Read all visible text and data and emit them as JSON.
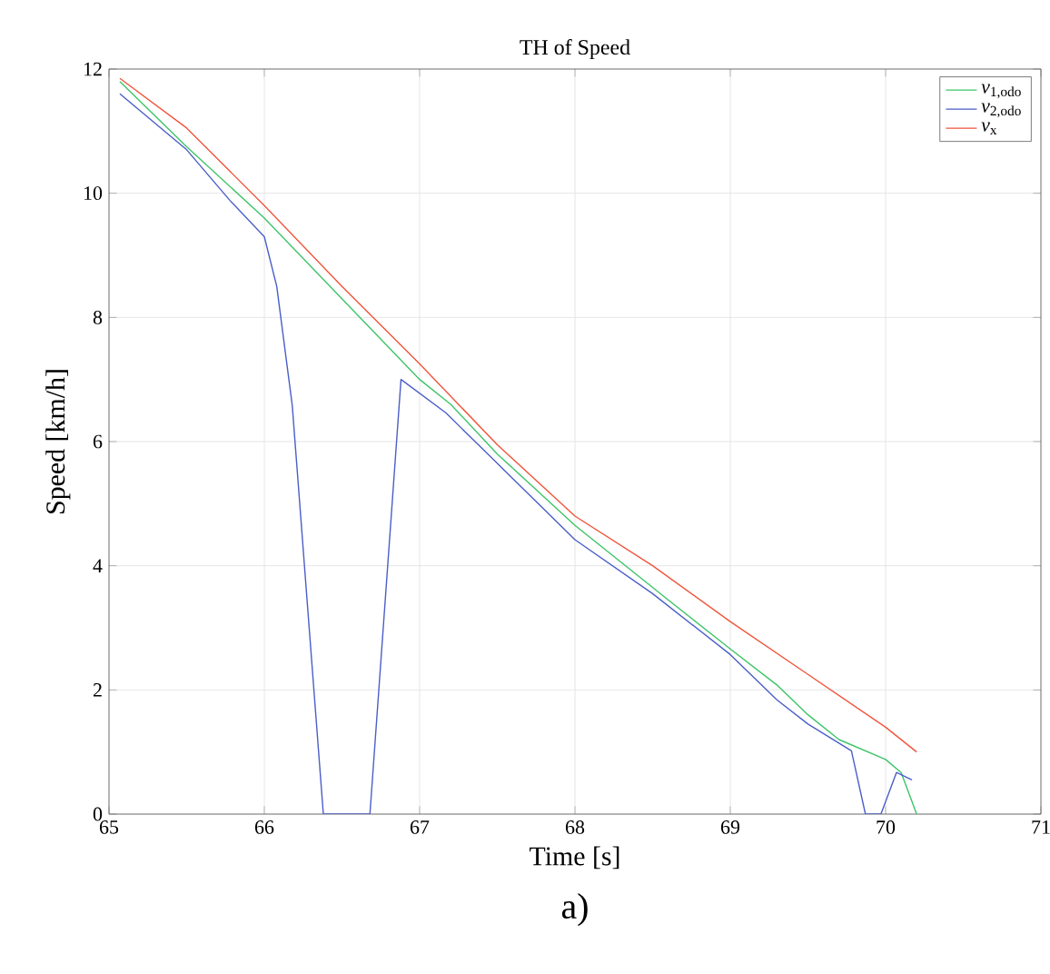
{
  "chart_data": {
    "type": "line",
    "title": "TH of Speed",
    "xlabel": "Time [s]",
    "ylabel": "Speed [km/h]",
    "annotations": [
      "a)"
    ],
    "xlim": [
      65,
      71
    ],
    "ylim": [
      0,
      12
    ],
    "xticks": [
      65,
      66,
      67,
      68,
      69,
      70,
      71
    ],
    "yticks": [
      0,
      2,
      4,
      6,
      8,
      10,
      12
    ],
    "grid": true,
    "legend": "top right",
    "marker": "none",
    "line_style": "solid",
    "series": [
      {
        "name": "*v*$_{1,odo}$",
        "color": "#3cc468",
        "x": [
          65.07,
          65.5,
          66,
          66.5,
          67,
          67.2,
          67.5,
          68,
          68.5,
          68.6,
          69,
          69.3,
          69.5,
          69.7,
          70,
          70.1,
          70.2
        ],
        "values": [
          11.8,
          10.75,
          9.6,
          8.3,
          7.0,
          6.6,
          5.8,
          4.65,
          3.65,
          3.45,
          2.66,
          2.08,
          1.6,
          1.2,
          0.88,
          0.67,
          0
        ]
      },
      {
        "name": "*v*$_{2,odo}$",
        "color": "#4a5ec8",
        "x": [
          65.07,
          65.5,
          65.78,
          66,
          66.08,
          66.18,
          66.38,
          66.68,
          66.88,
          67.17,
          67.5,
          68,
          68.5,
          69,
          69.3,
          69.5,
          69.78,
          69.87,
          69.97,
          70.07,
          70.17
        ],
        "values": [
          11.6,
          10.7,
          9.88,
          9.3,
          8.5,
          6.58,
          0,
          0,
          7.0,
          6.46,
          5.65,
          4.42,
          3.55,
          2.57,
          1.84,
          1.45,
          1.02,
          0,
          0,
          0.67,
          0.55
        ]
      },
      {
        "name": "*v*$_{x}$",
        "color": "#f0553c",
        "x": [
          65.07,
          65.5,
          66,
          66.5,
          67,
          67.5,
          68,
          68.5,
          69,
          69.5,
          70,
          70.2
        ],
        "values": [
          11.85,
          11.05,
          9.8,
          8.5,
          7.25,
          5.95,
          4.8,
          4.0,
          3.1,
          2.25,
          1.4,
          1.0
        ]
      }
    ]
  }
}
